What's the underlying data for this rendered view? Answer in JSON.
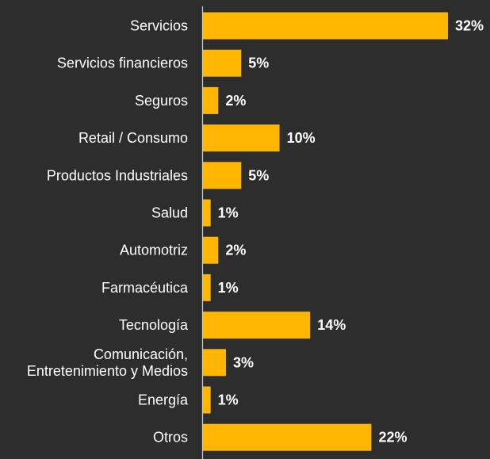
{
  "chart_data": {
    "type": "bar",
    "orientation": "horizontal",
    "categories": [
      "Servicios",
      "Servicios financieros",
      "Seguros",
      "Retail / Consumo",
      "Productos Industriales",
      "Salud",
      "Automotriz",
      "Farmacéutica",
      "Tecnología",
      "Comunicación, Entretenimiento y Medios",
      "Energía",
      "Otros"
    ],
    "category_lines": [
      [
        "Servicios"
      ],
      [
        "Servicios financieros"
      ],
      [
        "Seguros"
      ],
      [
        "Retail / Consumo"
      ],
      [
        "Productos Industriales"
      ],
      [
        "Salud"
      ],
      [
        "Automotriz"
      ],
      [
        "Farmacéutica"
      ],
      [
        "Tecnología"
      ],
      [
        "Comunicación,",
        "Entretenimiento y Medios"
      ],
      [
        "Energía"
      ],
      [
        "Otros"
      ]
    ],
    "values": [
      32,
      5,
      2,
      10,
      5,
      1,
      2,
      1,
      14,
      3,
      1,
      22
    ],
    "value_labels": [
      "32%",
      "5%",
      "2%",
      "10%",
      "5%",
      "1%",
      "2%",
      "1%",
      "14%",
      "3%",
      "1%",
      "22%"
    ],
    "unit": "%",
    "xlim": [
      0,
      32
    ],
    "grid": false,
    "legend": "none",
    "colors": {
      "bar": "#ffb600",
      "background": "#2d2d2d",
      "axis": "#cfcfcf",
      "text": "#ffffff"
    }
  }
}
